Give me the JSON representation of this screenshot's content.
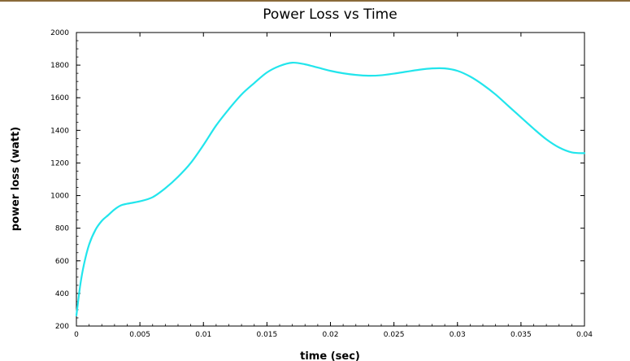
{
  "chart_data": {
    "type": "line",
    "title": "Power Loss vs Time",
    "xlabel": "time (sec)",
    "ylabel": "power loss (watt)",
    "xlim": [
      0,
      0.04
    ],
    "ylim": [
      200,
      2000
    ],
    "x_ticks": [
      0,
      0.005,
      0.01,
      0.015,
      0.02,
      0.025,
      0.03,
      0.035,
      0.04
    ],
    "x_tick_labels": [
      "0",
      "0.005",
      "0.01",
      "0.015",
      "0.02",
      "0.025",
      "0.03",
      "0.035",
      "0.04"
    ],
    "y_ticks": [
      200,
      400,
      600,
      800,
      1000,
      1200,
      1400,
      1600,
      1800,
      2000
    ],
    "y_tick_labels": [
      "200",
      "400",
      "600",
      "800",
      "1000",
      "1200",
      "1400",
      "1600",
      "1800",
      "2000"
    ],
    "grid": false,
    "line_color": "#22e5ec",
    "series": [
      {
        "x": [
          0,
          0.0003,
          0.0006,
          0.001,
          0.0015,
          0.002,
          0.0025,
          0.003,
          0.0035,
          0.004,
          0.005,
          0.006,
          0.007,
          0.008,
          0.009,
          0.01,
          0.011,
          0.012,
          0.013,
          0.014,
          0.015,
          0.016,
          0.017,
          0.018,
          0.019,
          0.02,
          0.021,
          0.022,
          0.023,
          0.024,
          0.025,
          0.026,
          0.027,
          0.028,
          0.029,
          0.03,
          0.031,
          0.032,
          0.033,
          0.034,
          0.035,
          0.036,
          0.037,
          0.038,
          0.039,
          0.04
        ],
        "values": [
          265,
          450,
          580,
          700,
          790,
          845,
          880,
          915,
          940,
          950,
          965,
          990,
          1045,
          1115,
          1200,
          1310,
          1430,
          1530,
          1620,
          1690,
          1755,
          1795,
          1815,
          1805,
          1785,
          1765,
          1750,
          1740,
          1735,
          1738,
          1748,
          1760,
          1772,
          1780,
          1780,
          1765,
          1730,
          1680,
          1620,
          1550,
          1480,
          1410,
          1345,
          1295,
          1265,
          1260
        ]
      }
    ]
  }
}
